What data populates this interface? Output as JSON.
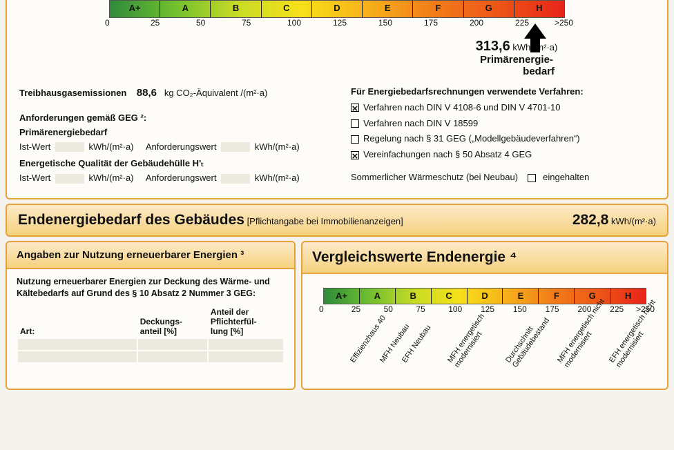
{
  "colors": {
    "border": "#e8a03a",
    "bg": "#fdfcf8",
    "gradient": [
      "#2e8b3c",
      "#6fbf2e",
      "#c7db25",
      "#f7e01a",
      "#f7b31a",
      "#f28019",
      "#ee5a17",
      "#e8241a"
    ]
  },
  "top_scale": {
    "classes": [
      "A+",
      "A",
      "B",
      "C",
      "D",
      "E",
      "F",
      "G",
      "H"
    ],
    "ticks": [
      "0",
      "25",
      "50",
      "75",
      "100",
      "125",
      "150",
      "175",
      "200",
      "225",
      ">250"
    ],
    "pointer_value": "313,6",
    "pointer_unit": "kWh/(m²·a)",
    "pointer_label1": "Primärenergie-",
    "pointer_label2": "bedarf",
    "pointer_position_pct": 95
  },
  "ghg": {
    "label": "Treibhausgasemissionen",
    "value": "88,6",
    "unit": "kg CO₂-Äquivalent /(m²·a)"
  },
  "geg": {
    "heading": "Anforderungen gemäß GEG ²:",
    "sub1": "Primärenergiebedarf",
    "ist": "Ist-Wert",
    "anf": "Anforderungswert",
    "unit": "kWh/(m²·a)",
    "sub2": "Energetische Qualität der Gebäudehülle H'ₜ"
  },
  "verfahren": {
    "heading": "Für Energiebedarfsrechnungen verwendete Verfahren:",
    "items": [
      {
        "checked": true,
        "label": "Verfahren nach DIN V 4108-6 und DIN V 4701-10"
      },
      {
        "checked": false,
        "label": "Verfahren nach DIN V 18599"
      },
      {
        "checked": false,
        "label": "Regelung nach § 31 GEG („Modellgebäudeverfahren“)"
      },
      {
        "checked": true,
        "label": "Vereinfachungen nach § 50 Absatz 4 GEG"
      }
    ],
    "sommer_label": "Sommerlicher Wärmeschutz (bei Neubau)",
    "sommer_box": "eingehalten"
  },
  "endenergie_band": {
    "title": "Endenergiebedarf des Gebäudes",
    "sub": "[Pflichtangabe bei Immobilienanzeigen]",
    "value": "282,8",
    "unit": "kWh/(m²·a)"
  },
  "renewable": {
    "heading": "Angaben zur Nutzung erneuerbarer Energien ³",
    "text": "Nutzung erneuerbarer Energien zur Deckung des Wärme- und Kältebedarfs auf Grund des § 10 Absatz 2 Nummer 3 GEG:",
    "cols": [
      "Art:",
      "Deckungs-\nanteil [%]",
      "Anteil der\nPflichterfül-\nlung [%]"
    ]
  },
  "vergleich": {
    "heading": "Vergleichswerte Endenergie ⁴",
    "classes": [
      "A+",
      "A",
      "B",
      "C",
      "D",
      "E",
      "F",
      "G",
      "H"
    ],
    "ticks": [
      "0",
      "25",
      "50",
      "75",
      "100",
      "125",
      "150",
      "175",
      "200",
      "225",
      ">250"
    ],
    "labels": [
      {
        "pct": 8,
        "text": "Effizienzhaus 40"
      },
      {
        "pct": 17,
        "text": "MFH Neubau"
      },
      {
        "pct": 24,
        "text": "EFH Neubau"
      },
      {
        "pct": 38,
        "text": "MFH energetisch\nmodernisiert"
      },
      {
        "pct": 56,
        "text": "Durchschnitt\nGebäudebestand"
      },
      {
        "pct": 72,
        "text": "MFH energetisch nicht\nmodernisiert"
      },
      {
        "pct": 88,
        "text": "EFH energetisch nicht\nmodernisiert"
      }
    ]
  }
}
